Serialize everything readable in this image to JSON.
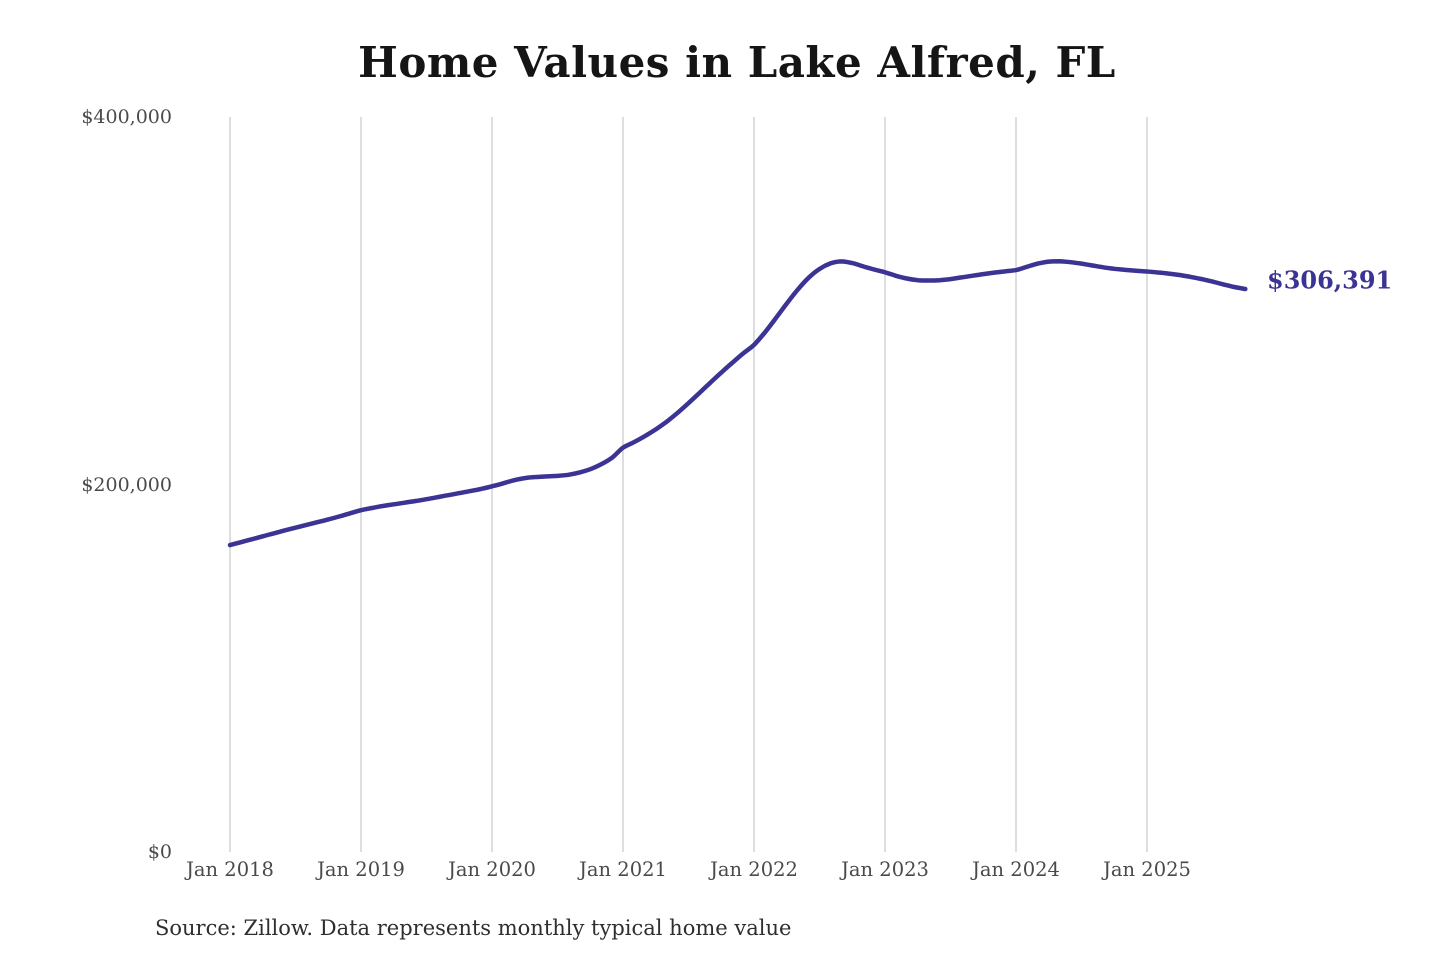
{
  "page": {
    "background": "#ffffff"
  },
  "chart_data": {
    "type": "line",
    "title": "Home Values in Lake Alfred, FL",
    "source_note": "Source: Zillow. Data represents monthly typical home value",
    "legend": "none",
    "grid": "vertical-only",
    "ylim": [
      0,
      400000
    ],
    "y_tick_labels": [
      "$400,000",
      "$200,000",
      "$0"
    ],
    "y_tick_values": [
      400000,
      200000,
      0
    ],
    "x_tick_labels": [
      "Jan 2018",
      "Jan 2019",
      "Jan 2020",
      "Jan 2021",
      "Jan 2022",
      "Jan 2023",
      "Jan 2024",
      "Jan 2025"
    ],
    "x_range": [
      "Jan 2018",
      "Oct 2025"
    ],
    "end_label": "$306,391",
    "end_value": 306391,
    "line_color": "#3b3494",
    "grid_color": "#cccccc",
    "label_color": "#4a4a4a",
    "title_color": "#151515",
    "series": [
      {
        "name": "Typical home value",
        "months": [
          "Jan 2018",
          "Feb 2018",
          "Mar 2018",
          "Apr 2018",
          "May 2018",
          "Jun 2018",
          "Jul 2018",
          "Aug 2018",
          "Sep 2018",
          "Oct 2018",
          "Nov 2018",
          "Dec 2018",
          "Jan 2019",
          "Feb 2019",
          "Mar 2019",
          "Apr 2019",
          "May 2019",
          "Jun 2019",
          "Jul 2019",
          "Aug 2019",
          "Sep 2019",
          "Oct 2019",
          "Nov 2019",
          "Dec 2019",
          "Jan 2020",
          "Feb 2020",
          "Mar 2020",
          "Apr 2020",
          "May 2020",
          "Jun 2020",
          "Jul 2020",
          "Aug 2020",
          "Sep 2020",
          "Oct 2020",
          "Nov 2020",
          "Dec 2020",
          "Jan 2021",
          "Feb 2021",
          "Mar 2021",
          "Apr 2021",
          "May 2021",
          "Jun 2021",
          "Jul 2021",
          "Aug 2021",
          "Sep 2021",
          "Oct 2021",
          "Nov 2021",
          "Dec 2021",
          "Jan 2022",
          "Feb 2022",
          "Mar 2022",
          "Apr 2022",
          "May 2022",
          "Jun 2022",
          "Jul 2022",
          "Aug 2022",
          "Sep 2022",
          "Oct 2022",
          "Nov 2022",
          "Dec 2022",
          "Jan 2023",
          "Feb 2023",
          "Mar 2023",
          "Apr 2023",
          "May 2023",
          "Jun 2023",
          "Jul 2023",
          "Aug 2023",
          "Sep 2023",
          "Oct 2023",
          "Nov 2023",
          "Dec 2023",
          "Jan 2024",
          "Feb 2024",
          "Mar 2024",
          "Apr 2024",
          "May 2024",
          "Jun 2024",
          "Jul 2024",
          "Aug 2024",
          "Sep 2024",
          "Oct 2024",
          "Nov 2024",
          "Dec 2024",
          "Jan 2025",
          "Feb 2025",
          "Mar 2025",
          "Apr 2025",
          "May 2025",
          "Jun 2025",
          "Jul 2025",
          "Aug 2025",
          "Sep 2025",
          "Oct 2025"
        ],
        "values": [
          167000,
          168600,
          170200,
          171800,
          173400,
          175000,
          176500,
          178000,
          179500,
          181000,
          182600,
          184300,
          186000,
          187200,
          188300,
          189200,
          190100,
          191000,
          192000,
          193100,
          194200,
          195300,
          196400,
          197600,
          199000,
          200600,
          202300,
          203500,
          204100,
          204400,
          204700,
          205300,
          206500,
          208300,
          211000,
          214600,
          220000,
          223000,
          226300,
          230000,
          234200,
          239000,
          244300,
          249800,
          255400,
          260900,
          266200,
          271300,
          276000,
          282800,
          290500,
          298500,
          306000,
          312500,
          317300,
          320300,
          321400,
          320500,
          318700,
          317000,
          315500,
          313600,
          312100,
          311200,
          311000,
          311200,
          311800,
          312700,
          313600,
          314500,
          315300,
          316000,
          316700,
          318500,
          320200,
          321300,
          321500,
          321000,
          320200,
          319200,
          318200,
          317400,
          316800,
          316300,
          315900,
          315400,
          314800,
          314000,
          313000,
          311800,
          310400,
          308900,
          307500,
          306391
        ]
      }
    ]
  }
}
